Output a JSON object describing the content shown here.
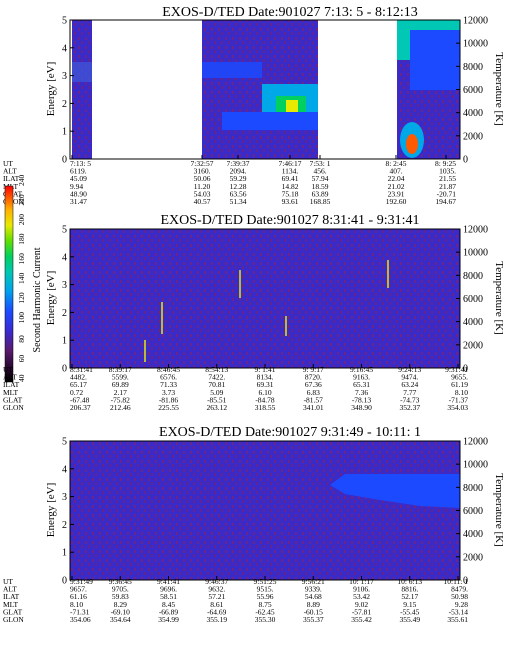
{
  "chart_data": [
    {
      "type": "heatmap",
      "title": "EXOS-D/TED   Date:901027  7:13: 5 - 8:12:13",
      "ylabel": "Energy [eV]",
      "y2label": "Temperature [K]",
      "ylim": [
        0,
        5
      ],
      "y2lim": [
        0,
        12000
      ],
      "yticks": [
        "0",
        "1",
        "2",
        "3",
        "4",
        "5"
      ],
      "y2ticks": [
        "0",
        "2000",
        "4000",
        "6000",
        "8000",
        "10000",
        "12000"
      ],
      "row_labels": [
        "UT",
        "ALT",
        "ILAT",
        "MLT",
        "GLAT",
        "GLON"
      ],
      "columns": [
        {
          "UT": "7:13: 5",
          "ALT": "6119.",
          "ILAT": "45.09",
          "MLT": "9.94",
          "GLAT": "48.90",
          "GLON": "31.47"
        },
        {
          "UT": "7:32:57",
          "ALT": "3160.",
          "ILAT": "50.06",
          "MLT": "11.20",
          "GLAT": "54.03",
          "GLON": "40.57"
        },
        {
          "UT": "7:39:37",
          "ALT": "2094.",
          "ILAT": "59.29",
          "MLT": "12.28",
          "GLAT": "63.56",
          "GLON": "51.34"
        },
        {
          "UT": "7:46:17",
          "ALT": "1134.",
          "ILAT": "69.41",
          "MLT": "14.82",
          "GLAT": "75.18",
          "GLON": "93.61"
        },
        {
          "UT": "7:53: 1",
          "ALT": "456.",
          "ILAT": "57.94",
          "MLT": "18.59",
          "GLAT": "63.89",
          "GLON": "168.85"
        },
        {
          "UT": "8: 2:45",
          "ALT": "407.",
          "ILAT": "22.04",
          "MLT": "21.02",
          "GLAT": "23.91",
          "GLON": "192.60"
        },
        {
          "UT": "8: 9:25",
          "ALT": "1035.",
          "ILAT": "21.55",
          "MLT": "21.87",
          "GLAT": "-20.71",
          "GLON": "194.67"
        }
      ]
    },
    {
      "type": "heatmap",
      "title": "EXOS-D/TED   Date:901027  8:31:41 - 9:31:41",
      "ylabel": "Energy [eV]",
      "y2label": "Temperature [K]",
      "ylim": [
        0,
        5
      ],
      "y2lim": [
        0,
        12000
      ],
      "yticks": [
        "0",
        "1",
        "2",
        "3",
        "4",
        "5"
      ],
      "y2ticks": [
        "0",
        "2000",
        "4000",
        "6000",
        "8000",
        "10000",
        "12000"
      ],
      "row_labels": [
        "UT",
        "ALT",
        "ILAT",
        "MLT",
        "GLAT",
        "GLON"
      ],
      "columns": [
        {
          "UT": "8:31:41",
          "ALT": "4482.",
          "ILAT": "65.17",
          "MLT": "0.72",
          "GLAT": "-67.48",
          "GLON": "206.37"
        },
        {
          "UT": "8:39:17",
          "ALT": "5599.",
          "ILAT": "69.89",
          "MLT": "2.17",
          "GLAT": "-75.82",
          "GLON": "212.46"
        },
        {
          "UT": "8:46:45",
          "ALT": "6576.",
          "ILAT": "71.33",
          "MLT": "3.73",
          "GLAT": "-81.86",
          "GLON": "225.55"
        },
        {
          "UT": "8:54:13",
          "ALT": "7422.",
          "ILAT": "70.81",
          "MLT": "5.09",
          "GLAT": "-85.51",
          "GLON": "263.12"
        },
        {
          "UT": "9: 1:41",
          "ALT": "8134.",
          "ILAT": "69.31",
          "MLT": "6.10",
          "GLAT": "-84.78",
          "GLON": "318.55"
        },
        {
          "UT": "9: 9:17",
          "ALT": "8720.",
          "ILAT": "67.36",
          "MLT": "6.83",
          "GLAT": "-81.57",
          "GLON": "341.01"
        },
        {
          "UT": "9:16:45",
          "ALT": "9163.",
          "ILAT": "65.31",
          "MLT": "7.36",
          "GLAT": "-78.13",
          "GLON": "348.90"
        },
        {
          "UT": "9:24:13",
          "ALT": "9474.",
          "ILAT": "63.24",
          "MLT": "7.77",
          "GLAT": "-74.73",
          "GLON": "352.37"
        },
        {
          "UT": "9:31:41",
          "ALT": "9655.",
          "ILAT": "61.19",
          "MLT": "8.10",
          "GLAT": "-71.37",
          "GLON": "354.03"
        }
      ]
    },
    {
      "type": "heatmap",
      "title": "EXOS-D/TED   Date:901027  9:31:49 - 10:11: 1",
      "ylabel": "Energy [eV]",
      "y2label": "Temperature [K]",
      "ylim": [
        0,
        5
      ],
      "y2lim": [
        0,
        12000
      ],
      "yticks": [
        "0",
        "1",
        "2",
        "3",
        "4",
        "5"
      ],
      "y2ticks": [
        "0",
        "2000",
        "4000",
        "6000",
        "8000",
        "10000",
        "12000"
      ],
      "row_labels": [
        "UT",
        "ALT",
        "ILAT",
        "MLT",
        "GLAT",
        "GLON"
      ],
      "columns": [
        {
          "UT": "9:31:49",
          "ALT": "9657.",
          "ILAT": "61.16",
          "MLT": "8.10",
          "GLAT": "-71.31",
          "GLON": "354.06"
        },
        {
          "UT": "9:36:45",
          "ALT": "9705.",
          "ILAT": "59.83",
          "MLT": "8.29",
          "GLAT": "-69.10",
          "GLON": "354.64"
        },
        {
          "UT": "9:41:41",
          "ALT": "9696.",
          "ILAT": "58.51",
          "MLT": "8.45",
          "GLAT": "-66.89",
          "GLON": "354.99"
        },
        {
          "UT": "9:46:37",
          "ALT": "9632.",
          "ILAT": "57.21",
          "MLT": "8.61",
          "GLAT": "-64.69",
          "GLON": "355.19"
        },
        {
          "UT": "9:51:25",
          "ALT": "9515.",
          "ILAT": "55.96",
          "MLT": "8.75",
          "GLAT": "-62.45",
          "GLON": "355.30"
        },
        {
          "UT": "9:56:21",
          "ALT": "9339.",
          "ILAT": "54.68",
          "MLT": "8.89",
          "GLAT": "-60.15",
          "GLON": "355.37"
        },
        {
          "UT": "10: 1:17",
          "ALT": "9106.",
          "ILAT": "53.42",
          "MLT": "9.02",
          "GLAT": "-57.81",
          "GLON": "355.42"
        },
        {
          "UT": "10: 6:13",
          "ALT": "8816.",
          "ILAT": "52.17",
          "MLT": "9.15",
          "GLAT": "-55.45",
          "GLON": "355.49"
        },
        {
          "UT": "10:11: 1",
          "ALT": "8479.",
          "ILAT": "50.98",
          "MLT": "9.28",
          "GLAT": "-53.14",
          "GLON": "355.61"
        }
      ]
    }
  ],
  "colorbar": {
    "label": "Second Harmonic Current",
    "ticks": [
      "40",
      "60",
      "80",
      "100",
      "120",
      "140",
      "160",
      "180",
      "200",
      "220",
      "240"
    ],
    "colors": [
      "#000000",
      "#2b0a33",
      "#5a1a6e",
      "#4a1ea8",
      "#2a2ad8",
      "#1c4aff",
      "#0078ff",
      "#00a8e8",
      "#00c8b4",
      "#00d060",
      "#28e000",
      "#9ce800",
      "#e8ea00",
      "#ffb000",
      "#ff5a00",
      "#ff0000"
    ]
  },
  "colors": {
    "background_blue": "#3a2ac8",
    "noise_red": "#c8282a",
    "axis": "#000000"
  }
}
